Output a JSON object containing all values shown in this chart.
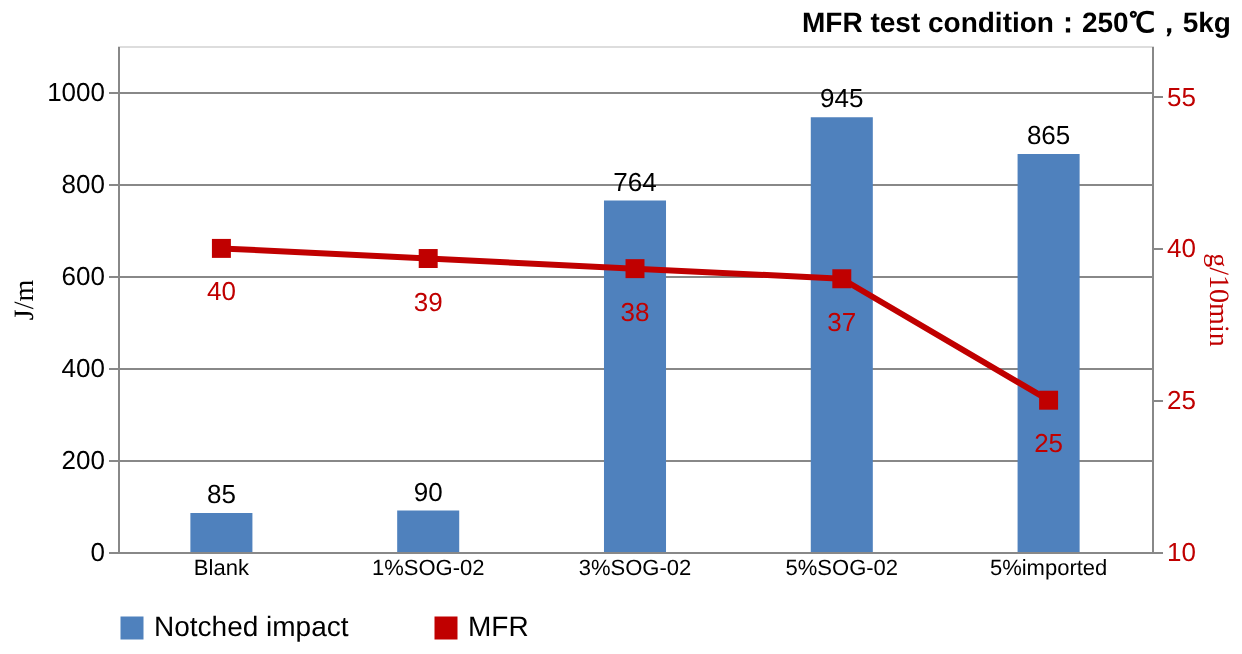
{
  "chart_data": {
    "type": "bar",
    "title": "MFR  test condition：250℃，5kg",
    "categories": [
      "Blank",
      "1%SOG-02",
      "3%SOG-02",
      "5%SOG-02",
      "5%imported"
    ],
    "series": [
      {
        "name": "Notched impact",
        "color": "#4f81bd",
        "values": [
          85,
          90,
          764,
          945,
          865
        ]
      },
      {
        "name": "MFR",
        "type": "line",
        "axis": "y2",
        "color": "#c00000",
        "marker": "square",
        "values": [
          40,
          39,
          38,
          37,
          25
        ]
      }
    ],
    "ylabel": "J/m",
    "y2label": "g/10min",
    "ylim": [
      0,
      1100
    ],
    "yticks": [
      0,
      200,
      400,
      600,
      800,
      1000
    ],
    "y2lim": [
      10,
      60
    ],
    "y2ticks": [
      10,
      25,
      40,
      55
    ],
    "grid": "y",
    "legend": "bottom",
    "data_labels": true
  }
}
